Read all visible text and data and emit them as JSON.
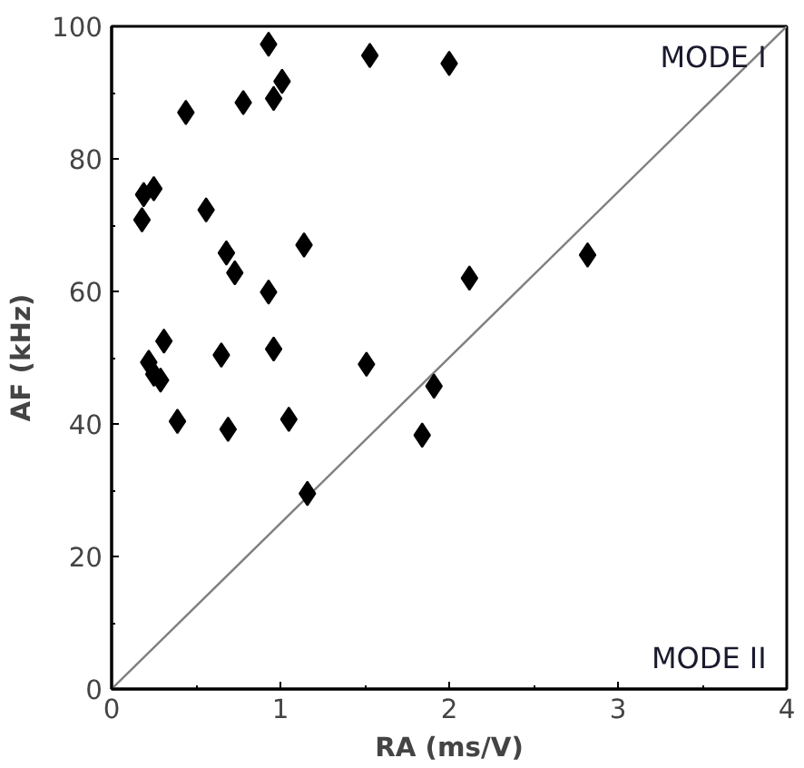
{
  "chart_data": {
    "type": "scatter",
    "xlabel": "RA (ms/V)",
    "ylabel": "AF (kHz)",
    "xlim": [
      0,
      4
    ],
    "ylim": [
      0,
      100
    ],
    "xticks": [
      0,
      1,
      2,
      3,
      4
    ],
    "yticks": [
      0,
      20,
      40,
      60,
      80,
      100
    ],
    "grid": false,
    "annotations": [
      "MODE I",
      "MODE II"
    ],
    "series": [
      {
        "type": "line",
        "color": "#808080",
        "marker": "none",
        "x": [
          0,
          4
        ],
        "values": [
          0,
          100
        ]
      },
      {
        "color": "#000000",
        "marker": "diamond",
        "x": [
          0.93,
          1.53,
          2.0,
          1.01,
          0.96,
          0.78,
          0.44,
          0.25,
          0.19,
          0.18,
          0.56,
          1.14,
          0.68,
          0.73,
          0.93,
          0.31,
          0.65,
          0.96,
          1.51,
          0.22,
          0.25,
          0.29,
          0.39,
          0.69,
          1.05,
          1.16,
          1.91,
          1.84,
          2.12,
          2.82
        ],
        "values": [
          97.3,
          95.6,
          94.4,
          91.7,
          89.1,
          88.5,
          87.0,
          75.5,
          74.6,
          70.8,
          72.3,
          67.0,
          65.8,
          62.8,
          59.9,
          52.5,
          50.4,
          51.3,
          49.0,
          49.3,
          47.5,
          46.6,
          40.4,
          39.2,
          40.7,
          29.5,
          45.7,
          38.3,
          62.0,
          65.5
        ]
      }
    ]
  }
}
